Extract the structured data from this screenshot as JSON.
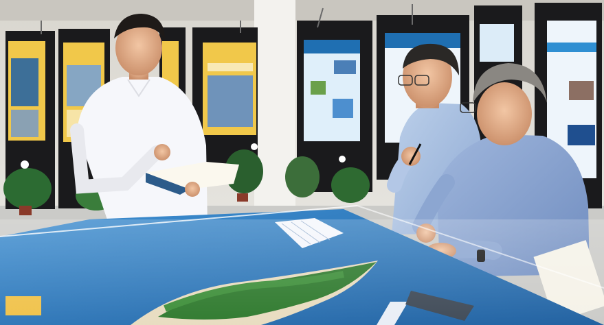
{
  "photo": {
    "colors": {
      "wall": "#e6e3dc",
      "floor": "#cfcfcc",
      "panel_frame": "#1a1a1c",
      "poster_yellow": "#f1c84a",
      "poster_blue": "#1f6fb2",
      "sea": "#2f7fc4",
      "island_green": "#2f7a2e",
      "sand": "#e8dcc0",
      "shirt_white": "#f6f7fb",
      "shirt_blue": "#a9bfdf",
      "shirt_grey_blue": "#8fa8d0"
    }
  }
}
